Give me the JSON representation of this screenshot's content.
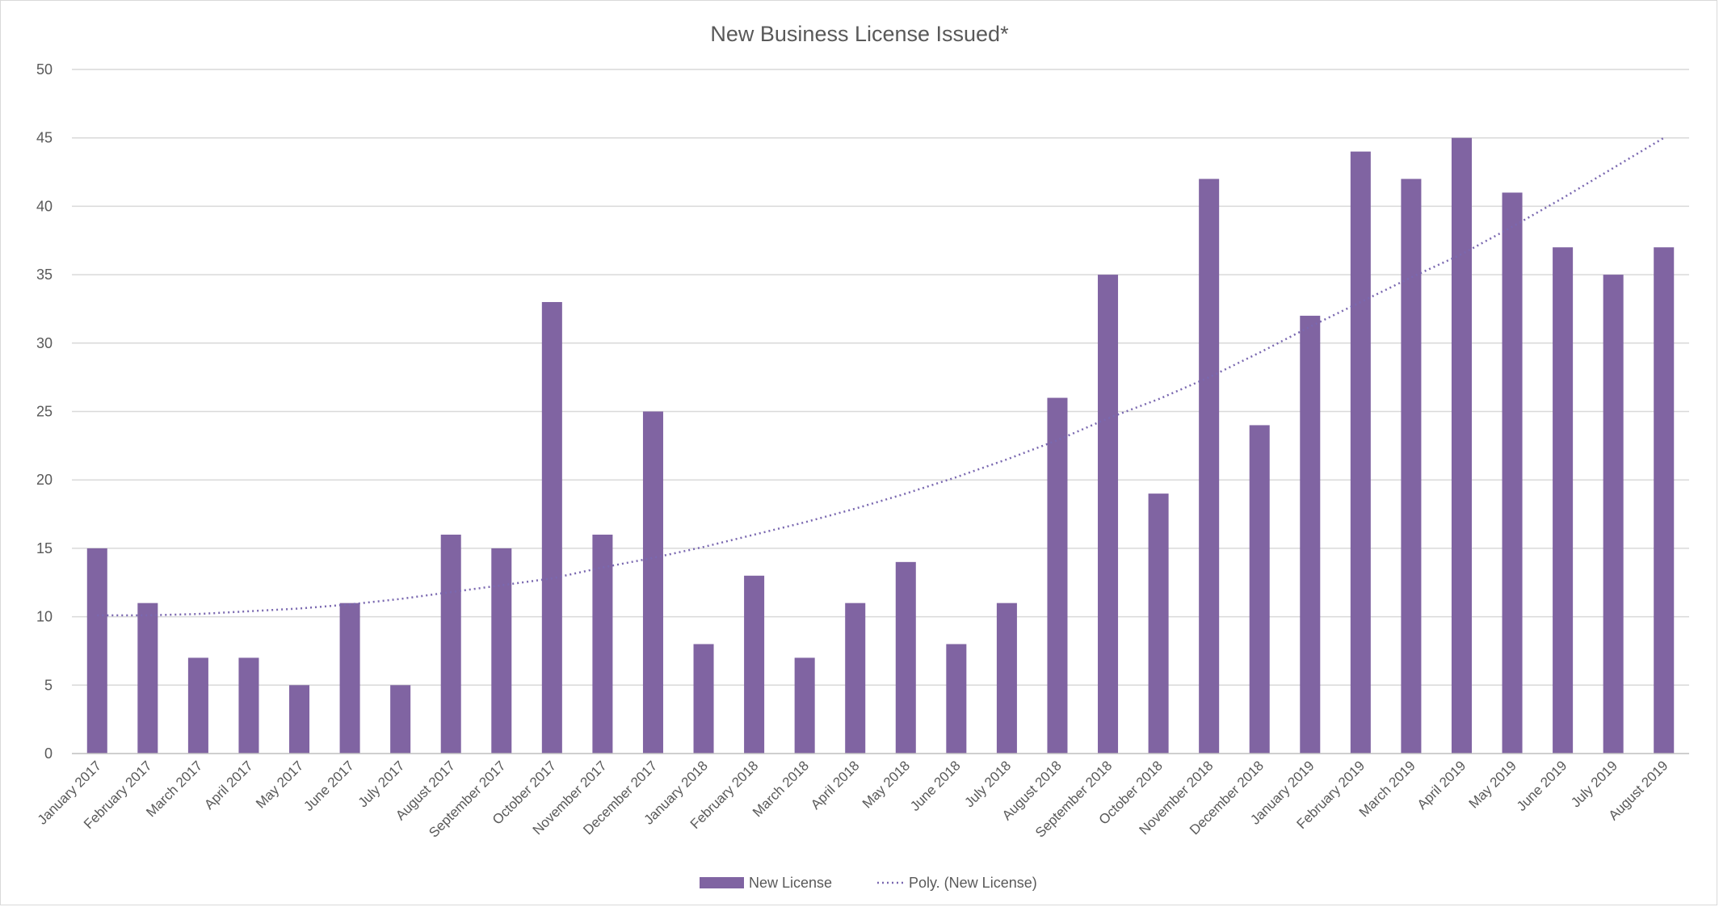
{
  "chart_data": {
    "type": "bar",
    "title": "New Business License Issued*",
    "xlabel": "",
    "ylabel": "",
    "ylim": [
      0,
      50
    ],
    "yticks": [
      0,
      5,
      10,
      15,
      20,
      25,
      30,
      35,
      40,
      45,
      50
    ],
    "grid": true,
    "legend_position": "bottom",
    "categories": [
      "January 2017",
      "February 2017",
      "March 2017",
      "April 2017",
      "May 2017",
      "June 2017",
      "July 2017",
      "August 2017",
      "September 2017",
      "October 2017",
      "November 2017",
      "December 2017",
      "January 2018",
      "February 2018",
      "March 2018",
      "April 2018",
      "May 2018",
      "June 2018",
      "July 2018",
      "August 2018",
      "September 2018",
      "October 2018",
      "November 2018",
      "December 2018",
      "January 2019",
      "February 2019",
      "March 2019",
      "April 2019",
      "May 2019",
      "June 2019",
      "July 2019",
      "August 2019"
    ],
    "series": [
      {
        "name": "New License",
        "color": "#8064a2",
        "values": [
          15,
          11,
          7,
          7,
          5,
          11,
          5,
          16,
          15,
          33,
          16,
          25,
          8,
          13,
          7,
          11,
          14,
          8,
          11,
          26,
          35,
          19,
          42,
          24,
          32,
          44,
          42,
          45,
          41,
          37,
          35,
          37
        ]
      }
    ],
    "trendline": {
      "name": "Poly. (New License)",
      "type": "polynomial",
      "style": "dotted",
      "color": "#7a68b0",
      "values": [
        10.1,
        10.1,
        10.2,
        10.4,
        10.6,
        10.9,
        11.3,
        11.8,
        12.3,
        12.8,
        13.6,
        14.3,
        15.1,
        16.0,
        16.9,
        17.9,
        19.0,
        20.2,
        21.5,
        22.9,
        24.5,
        25.9,
        27.5,
        29.3,
        31.2,
        33.0,
        34.8,
        36.5,
        38.5,
        40.6,
        42.8,
        45.0
      ]
    }
  }
}
